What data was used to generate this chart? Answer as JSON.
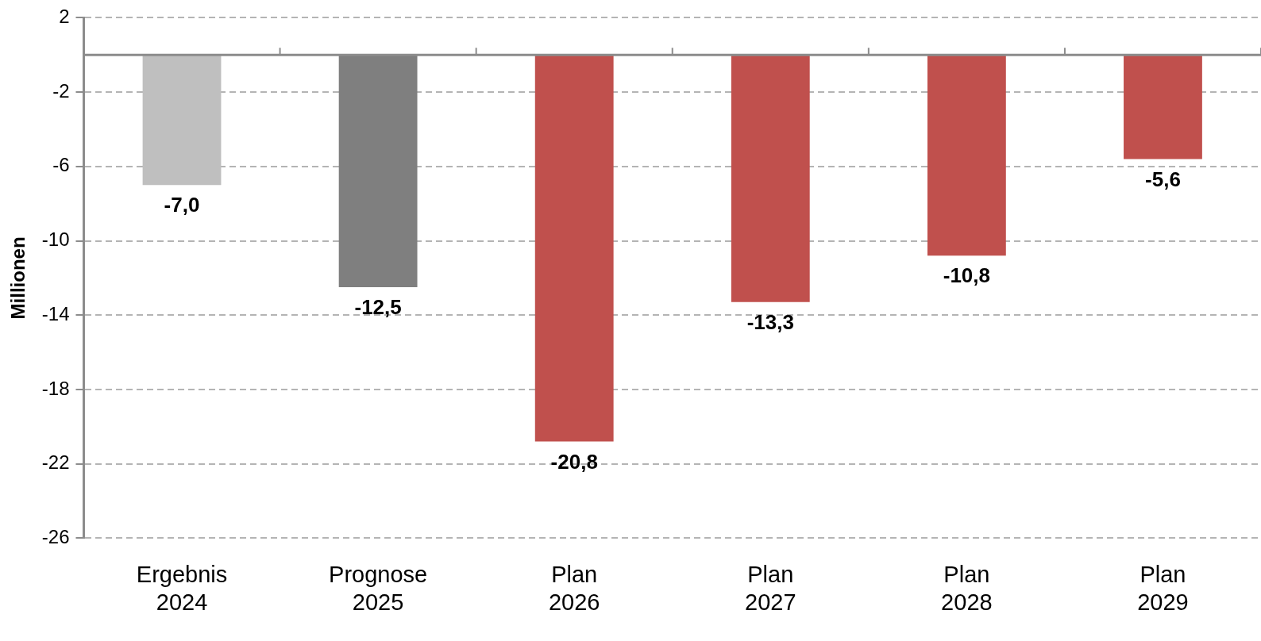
{
  "chart_data": {
    "type": "bar",
    "ylabel": "Millionen",
    "categories": [
      "Ergebnis\n2024",
      "Prognose\n2025",
      "Plan\n2026",
      "Plan\n2027",
      "Plan\n2028",
      "Plan\n2029"
    ],
    "values": [
      -7.0,
      -12.5,
      -20.8,
      -13.3,
      -10.8,
      -5.6
    ],
    "colors": [
      "#bfbfbf",
      "#7f7f7f",
      "#c0504d",
      "#c0504d",
      "#c0504d",
      "#c0504d"
    ],
    "value_labels": [
      "-7,0",
      "-12,5",
      "-20,8",
      "-13,3",
      "-10,8",
      "-5,6"
    ],
    "ylim": [
      -26,
      2
    ],
    "yticks": [
      2,
      -2,
      -6,
      -10,
      -14,
      -18,
      -22,
      -26
    ],
    "grid": "y",
    "legend": false
  }
}
